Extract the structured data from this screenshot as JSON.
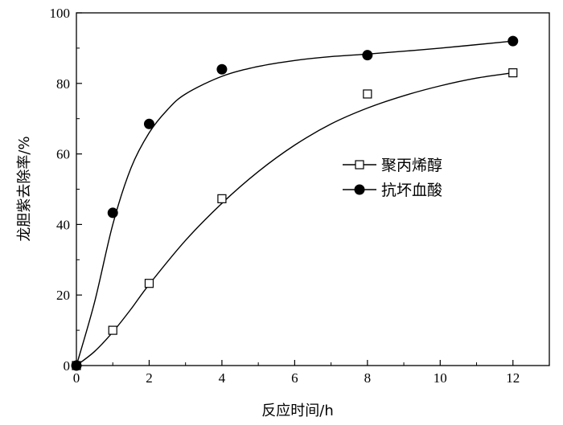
{
  "chart_data": {
    "type": "scatter",
    "xlabel": "反应时间/h",
    "ylabel": "龙胆紫去除率/%",
    "xlim": [
      0,
      13
    ],
    "ylim": [
      0,
      100
    ],
    "xticks": [
      0,
      2,
      4,
      6,
      8,
      10,
      12
    ],
    "yticks": [
      0,
      20,
      40,
      60,
      80,
      100
    ],
    "xtick_labels": [
      "0",
      "2",
      "4",
      "6",
      "8",
      "10",
      "12"
    ],
    "ytick_labels": [
      "0",
      "20",
      "40",
      "60",
      "80",
      "100"
    ],
    "grid": false,
    "legend_position": "right-middle",
    "series": [
      {
        "name": "聚丙烯醇",
        "marker": "open-square",
        "x": [
          0,
          1,
          2,
          4,
          8,
          12
        ],
        "y": [
          0,
          10,
          23.3,
          47.3,
          77,
          83
        ],
        "fit_curve": [
          [
            0,
            0
          ],
          [
            0.5,
            4
          ],
          [
            1,
            9.5
          ],
          [
            1.5,
            16
          ],
          [
            2,
            23
          ],
          [
            3,
            35.5
          ],
          [
            4,
            46
          ],
          [
            5,
            55
          ],
          [
            6,
            62.5
          ],
          [
            7,
            68.5
          ],
          [
            8,
            73
          ],
          [
            9,
            76.5
          ],
          [
            10,
            79.3
          ],
          [
            11,
            81.5
          ],
          [
            12,
            83
          ]
        ]
      },
      {
        "name": "抗坏血酸",
        "marker": "filled-circle",
        "x": [
          0,
          1,
          2,
          4,
          8,
          12
        ],
        "y": [
          0,
          43.3,
          68.5,
          84,
          88,
          92
        ],
        "fit_curve": [
          [
            0,
            0
          ],
          [
            0.5,
            18
          ],
          [
            1,
            40
          ],
          [
            1.5,
            56
          ],
          [
            2,
            66
          ],
          [
            2.5,
            72.5
          ],
          [
            3,
            77
          ],
          [
            4,
            82
          ],
          [
            5,
            84.8
          ],
          [
            6,
            86.5
          ],
          [
            7,
            87.6
          ],
          [
            8,
            88.3
          ],
          [
            10,
            90
          ],
          [
            12,
            92
          ]
        ]
      }
    ]
  }
}
